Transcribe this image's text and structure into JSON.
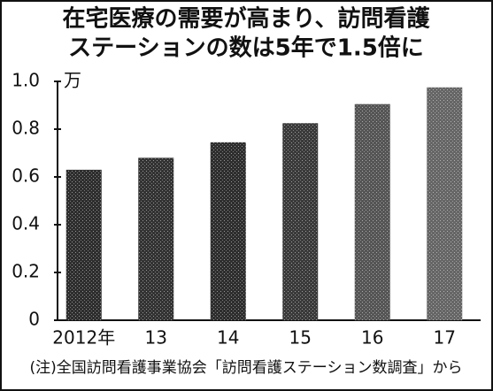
{
  "chart_data": {
    "type": "bar",
    "title": [
      "在宅医療の需要が高まり、訪問看護",
      "ステーションの数は5年で1.5倍に"
    ],
    "y_unit": "万",
    "categories": [
      "2012年",
      "13",
      "14",
      "15",
      "16",
      "17"
    ],
    "values": [
      0.63,
      0.68,
      0.745,
      0.825,
      0.905,
      0.975
    ],
    "colors": [
      "#2e2e2e",
      "#333333",
      "#2e2e2e",
      "#3a3a3a",
      "#555555",
      "#666666"
    ],
    "ylim": [
      0,
      1
    ],
    "yticks": [
      0,
      0.2,
      0.4,
      0.6,
      0.8,
      {
        "value": 1,
        "label": "1.0"
      }
    ],
    "grid": false,
    "source": "(注)全国訪問看護事業協会「訪問看護ステーション数調査」から"
  }
}
